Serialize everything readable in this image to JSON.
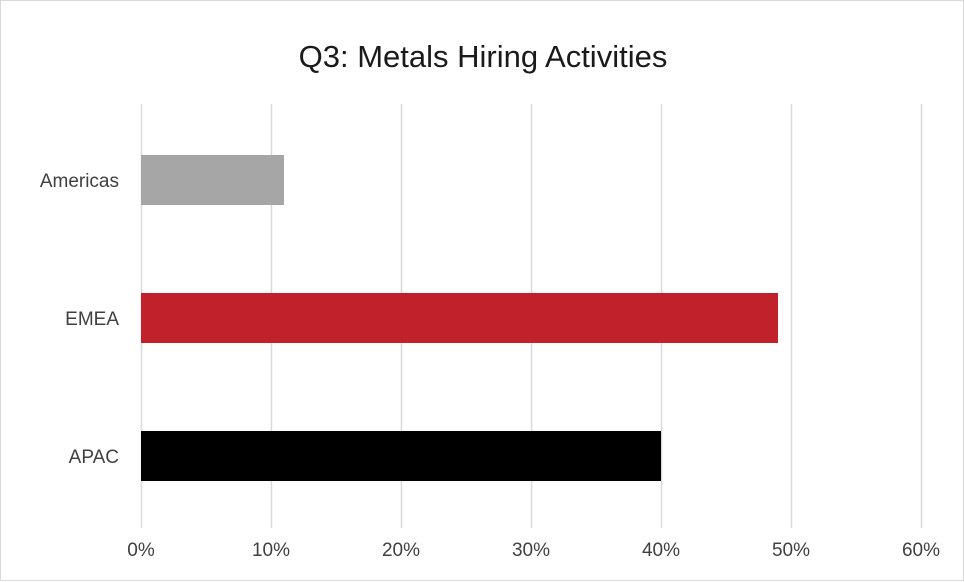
{
  "chart_data": {
    "type": "bar",
    "orientation": "horizontal",
    "title": "Q3: Metals Hiring Activities",
    "categories": [
      "Americas",
      "EMEA",
      "APAC"
    ],
    "values": [
      11,
      49,
      40
    ],
    "value_unit": "%",
    "bar_colors": [
      "#a6a6a6",
      "#c0212b",
      "#000000"
    ],
    "xlim": [
      0,
      60
    ],
    "x_ticks": [
      0,
      10,
      20,
      30,
      40,
      50,
      60
    ],
    "x_tick_labels": [
      "0%",
      "10%",
      "20%",
      "30%",
      "40%",
      "50%",
      "60%"
    ],
    "grid": true,
    "legend": "none"
  }
}
